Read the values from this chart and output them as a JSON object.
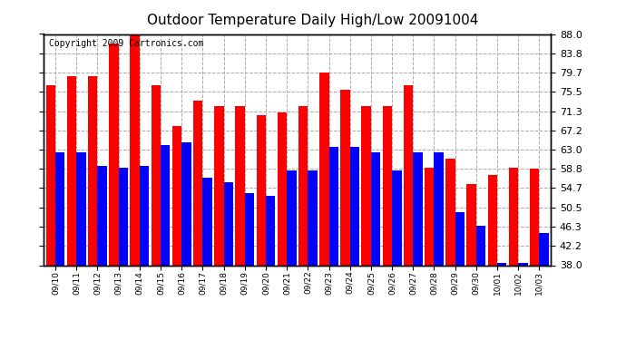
{
  "title": "Outdoor Temperature Daily High/Low 20091004",
  "copyright_text": "Copyright 2009 Cartronics.com",
  "dates": [
    "09/10",
    "09/11",
    "09/12",
    "09/13",
    "09/14",
    "09/15",
    "09/16",
    "09/17",
    "09/18",
    "09/19",
    "09/20",
    "09/21",
    "09/22",
    "09/23",
    "09/24",
    "09/25",
    "09/26",
    "09/27",
    "09/28",
    "09/29",
    "09/30",
    "10/01",
    "10/02",
    "10/03"
  ],
  "highs": [
    77.0,
    78.8,
    78.8,
    86.0,
    88.0,
    77.0,
    68.0,
    73.5,
    72.5,
    72.5,
    70.5,
    71.0,
    72.5,
    79.7,
    76.0,
    72.5,
    72.5,
    77.0,
    59.0,
    61.0,
    55.5,
    57.5,
    59.0,
    58.8
  ],
  "lows": [
    62.5,
    62.5,
    59.5,
    59.0,
    59.5,
    64.0,
    64.5,
    57.0,
    56.0,
    53.5,
    53.0,
    58.5,
    58.5,
    63.5,
    63.5,
    62.5,
    58.5,
    62.5,
    62.5,
    49.5,
    46.5,
    38.5,
    38.5,
    45.0
  ],
  "bar_color_high": "#ff0000",
  "bar_color_low": "#0000ff",
  "ylim_min": 38.0,
  "ylim_max": 88.0,
  "yticks": [
    38.0,
    42.2,
    46.3,
    50.5,
    54.7,
    58.8,
    63.0,
    67.2,
    71.3,
    75.5,
    79.7,
    83.8,
    88.0
  ],
  "background_color": "#ffffff",
  "grid_color": "#aaaaaa",
  "title_fontsize": 11,
  "copyright_fontsize": 7,
  "tick_fontsize": 8,
  "fig_width": 6.9,
  "fig_height": 3.75,
  "dpi": 100
}
